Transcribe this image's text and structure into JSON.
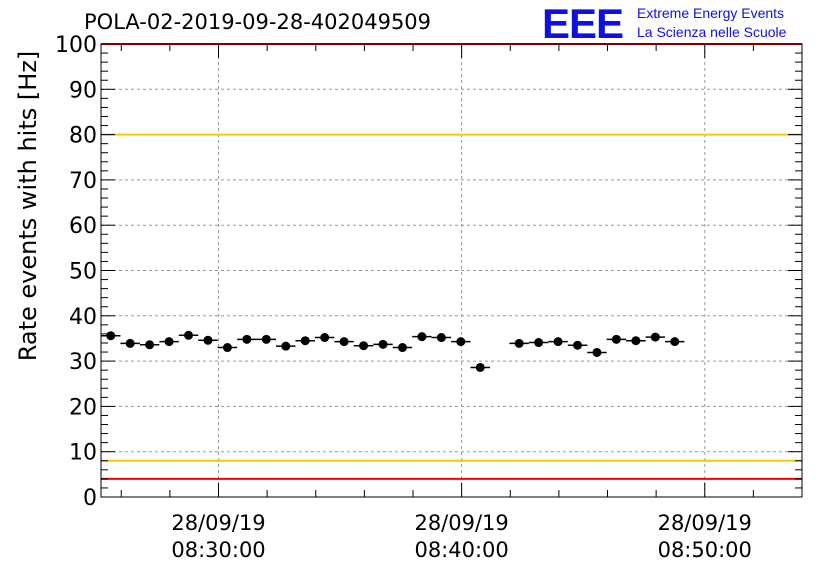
{
  "title": "POLA-02-2019-09-28-402049509",
  "logo": {
    "mark": "EEE",
    "line1": "Extreme Energy Events",
    "line2": "La Scienza nelle Scuole",
    "color": "#1010e0"
  },
  "chart_data": {
    "type": "scatter",
    "title": "POLA-02-2019-09-28-402049509",
    "xlabel": "",
    "ylabel": "Rate events with hits [Hz]",
    "ylim": [
      0,
      100
    ],
    "yticks": [
      0,
      10,
      20,
      30,
      40,
      50,
      60,
      70,
      80,
      90,
      100
    ],
    "xlim": [
      "2019-09-28 08:25:10",
      "2019-09-28 08:54:00"
    ],
    "xtick_labels": [
      {
        "date": "28/09/19",
        "time": "08:30:00",
        "at": "2019-09-28 08:30:00"
      },
      {
        "date": "28/09/19",
        "time": "08:40:00",
        "at": "2019-09-28 08:40:00"
      },
      {
        "date": "28/09/19",
        "time": "08:50:00",
        "at": "2019-09-28 08:50:00"
      }
    ],
    "grid": true,
    "bin_width_minutes": 0.8,
    "reference_lines": [
      {
        "y": 100,
        "color": "#ff0000"
      },
      {
        "y": 80,
        "color": "#f5c800"
      },
      {
        "y": 8,
        "color": "#f5c800"
      },
      {
        "y": 4,
        "color": "#ff0000"
      }
    ],
    "series": [
      {
        "marker": "circle",
        "color": "#000000",
        "x": [
          "2019-09-28 08:25:34",
          "2019-09-28 08:26:22",
          "2019-09-28 08:27:10",
          "2019-09-28 08:27:58",
          "2019-09-28 08:28:46",
          "2019-09-28 08:29:34",
          "2019-09-28 08:30:22",
          "2019-09-28 08:31:10",
          "2019-09-28 08:31:58",
          "2019-09-28 08:32:46",
          "2019-09-28 08:33:34",
          "2019-09-28 08:34:22",
          "2019-09-28 08:35:10",
          "2019-09-28 08:35:58",
          "2019-09-28 08:36:46",
          "2019-09-28 08:37:34",
          "2019-09-28 08:38:22",
          "2019-09-28 08:39:10",
          "2019-09-28 08:39:58",
          "2019-09-28 08:40:46",
          "2019-09-28 08:41:34",
          "2019-09-28 08:42:22",
          "2019-09-28 08:43:10",
          "2019-09-28 08:43:58",
          "2019-09-28 08:44:46",
          "2019-09-28 08:45:34",
          "2019-09-28 08:46:22",
          "2019-09-28 08:47:10",
          "2019-09-28 08:47:58",
          "2019-09-28 08:48:46",
          "2019-09-28 08:49:34",
          "2019-09-28 08:50:22",
          "2019-09-28 08:51:10",
          "2019-09-28 08:51:58",
          "2019-09-28 08:52:46",
          "2019-09-28 08:53:34"
        ],
        "y": [
          35.6,
          33.9,
          33.6,
          34.3,
          35.7,
          34.6,
          33.0,
          34.8,
          34.8,
          33.3,
          34.5,
          35.2,
          34.3,
          33.4,
          33.7,
          33.0,
          35.4,
          35.2,
          34.3,
          28.6,
          null,
          33.9,
          34.1,
          34.3,
          33.5,
          31.9,
          34.8,
          34.5,
          35.3,
          34.3,
          null,
          null,
          null,
          null,
          null,
          null
        ]
      }
    ]
  }
}
